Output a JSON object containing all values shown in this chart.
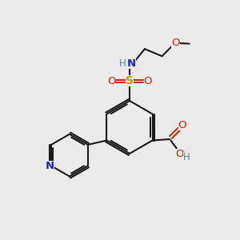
{
  "background_color": "#ebebeb",
  "bond_color": "#1a1a1a",
  "colors": {
    "N": "#2222cc",
    "O": "#cc2200",
    "S": "#aaaa00",
    "H_grey": "#558888",
    "C": "#1a1a1a"
  }
}
